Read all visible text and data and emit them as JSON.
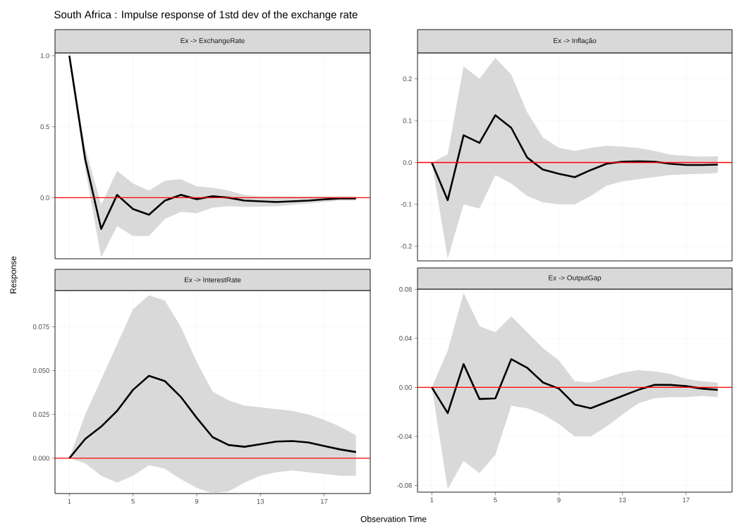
{
  "chart_data": [
    {
      "type": "line",
      "title": "Ex -> ExchangeRate",
      "annotations": [
        "South Africa : Impulse response of 1std dev of the exchange rate"
      ],
      "ylabel": "Response",
      "x": [
        1,
        2,
        3,
        4,
        5,
        6,
        7,
        8,
        9,
        10,
        11,
        12,
        13,
        14,
        15,
        16,
        17,
        18,
        19
      ],
      "series": [
        {
          "color": "#000000",
          "values": [
            1.0,
            0.27,
            -0.22,
            0.02,
            -0.08,
            -0.12,
            -0.02,
            0.02,
            -0.01,
            0.01,
            0.0,
            -0.02,
            -0.025,
            -0.03,
            -0.025,
            -0.02,
            -0.012,
            -0.005,
            -0.005
          ],
          "upper": [
            1.0,
            0.35,
            -0.05,
            0.19,
            0.1,
            0.05,
            0.12,
            0.13,
            0.08,
            0.07,
            0.05,
            0.02,
            0.01,
            0.01,
            0.01,
            0.01,
            0.01,
            0.01,
            0.01
          ],
          "lower": [
            0.95,
            0.2,
            -0.42,
            -0.2,
            -0.27,
            -0.27,
            -0.15,
            -0.1,
            -0.11,
            -0.07,
            -0.06,
            -0.065,
            -0.062,
            -0.06,
            -0.05,
            -0.04,
            -0.03,
            -0.02,
            -0.02
          ]
        }
      ],
      "xlim": [
        0.1,
        19.9
      ],
      "xticks": [
        1,
        5,
        9,
        13,
        17
      ],
      "ylim": [
        -0.43,
        1.02
      ],
      "yticks": [
        {
          "value": 0,
          "label": "0.0"
        },
        0.5,
        {
          "value": 1,
          "label": "1.0"
        }
      ],
      "ref_lines": [
        {
          "axis": "y",
          "value": 0,
          "color": "#ff0000"
        }
      ],
      "grid": true,
      "tick_labels": "y",
      "marker": "none",
      "line_style": "solid"
    },
    {
      "type": "line",
      "title": "Ex -> Inflação",
      "x": [
        1,
        2,
        3,
        4,
        5,
        6,
        7,
        8,
        9,
        10,
        11,
        12,
        13,
        14,
        15,
        16,
        17,
        18,
        19
      ],
      "series": [
        {
          "color": "#000000",
          "values": [
            0,
            -0.09,
            0.065,
            0.047,
            0.113,
            0.083,
            0.012,
            -0.017,
            -0.027,
            -0.035,
            -0.018,
            -0.003,
            0.002,
            0.003,
            0.002,
            -0.003,
            -0.006,
            -0.006,
            -0.005
          ],
          "upper": [
            0,
            0.02,
            0.23,
            0.2,
            0.25,
            0.21,
            0.12,
            0.06,
            0.035,
            0.028,
            0.035,
            0.04,
            0.038,
            0.035,
            0.028,
            0.019,
            0.016,
            0.014,
            0.015
          ],
          "lower": [
            0,
            -0.23,
            -0.1,
            -0.11,
            -0.03,
            -0.05,
            -0.08,
            -0.095,
            -0.1,
            -0.1,
            -0.08,
            -0.055,
            -0.045,
            -0.04,
            -0.035,
            -0.03,
            -0.028,
            -0.027,
            -0.025
          ]
        }
      ],
      "xlim": [
        0.1,
        19.9
      ],
      "xticks": [
        1,
        5,
        9,
        13,
        17
      ],
      "ylim": [
        -0.235,
        0.262
      ],
      "yticks": [
        -0.2,
        -0.1,
        {
          "value": 0,
          "label": "0.0"
        },
        0.1,
        0.2
      ],
      "ref_lines": [
        {
          "axis": "y",
          "value": 0,
          "color": "#ff0000"
        }
      ],
      "grid": true,
      "tick_labels": "y",
      "marker": "none",
      "line_style": "solid"
    },
    {
      "type": "line",
      "title": "Ex -> InterestRate",
      "xlabel": "Observation Time",
      "x": [
        1,
        2,
        3,
        4,
        5,
        6,
        7,
        8,
        9,
        10,
        11,
        12,
        13,
        14,
        15,
        16,
        17,
        18,
        19
      ],
      "series": [
        {
          "color": "#000000",
          "values": [
            0,
            0.011,
            0.018,
            0.027,
            0.039,
            0.047,
            0.044,
            0.035,
            0.023,
            0.012,
            0.0075,
            0.0065,
            0.008,
            0.0095,
            0.0098,
            0.009,
            0.007,
            0.005,
            0.0035
          ],
          "upper": [
            0,
            0.025,
            0.045,
            0.065,
            0.085,
            0.093,
            0.09,
            0.075,
            0.055,
            0.038,
            0.033,
            0.03,
            0.029,
            0.028,
            0.027,
            0.025,
            0.022,
            0.018,
            0.013
          ],
          "lower": [
            0,
            -0.003,
            -0.01,
            -0.014,
            -0.01,
            -0.004,
            -0.006,
            -0.012,
            -0.017,
            -0.02,
            -0.019,
            -0.014,
            -0.01,
            -0.008,
            -0.007,
            -0.008,
            -0.009,
            -0.01,
            -0.01
          ]
        }
      ],
      "xlim": [
        0.1,
        19.9
      ],
      "xticks": [
        1,
        5,
        9,
        13,
        17
      ],
      "ylim": [
        -0.0202,
        0.0957
      ],
      "yticks": [
        {
          "value": 0,
          "label": "0.000"
        },
        0.025,
        {
          "value": 0.05,
          "label": "0.050"
        },
        0.075
      ],
      "ref_lines": [
        {
          "axis": "y",
          "value": 0,
          "color": "#ff0000"
        }
      ],
      "grid": true,
      "marker": "none",
      "line_style": "solid"
    },
    {
      "type": "line",
      "title": "Ex -> OutputGap",
      "x": [
        1,
        2,
        3,
        4,
        5,
        6,
        7,
        8,
        9,
        10,
        11,
        12,
        13,
        14,
        15,
        16,
        17,
        18,
        19
      ],
      "series": [
        {
          "color": "#000000",
          "values": [
            0,
            -0.021,
            0.019,
            -0.0095,
            -0.009,
            0.023,
            0.016,
            0.004,
            -0.001,
            -0.014,
            -0.017,
            -0.012,
            -0.007,
            -0.002,
            0.002,
            0.002,
            0.001,
            -0.001,
            -0.002
          ],
          "upper": [
            0,
            0.03,
            0.077,
            0.05,
            0.045,
            0.058,
            0.045,
            0.032,
            0.022,
            0.005,
            0.004,
            0.008,
            0.012,
            0.014,
            0.013,
            0.011,
            0.007,
            0.005,
            0.004
          ],
          "lower": [
            0,
            -0.083,
            -0.06,
            -0.07,
            -0.055,
            -0.015,
            -0.017,
            -0.022,
            -0.03,
            -0.04,
            -0.04,
            -0.032,
            -0.022,
            -0.013,
            -0.009,
            -0.008,
            -0.008,
            -0.007,
            -0.008
          ]
        }
      ],
      "xlim": [
        0.1,
        19.9
      ],
      "xticks": [
        1,
        5,
        9,
        13,
        17
      ],
      "ylim": [
        -0.0855,
        0.0802
      ],
      "yticks": [
        {
          "value": -0.08,
          "label": "-0.08"
        },
        {
          "value": -0.04,
          "label": "-0.04"
        },
        {
          "value": 0,
          "label": "0.00"
        },
        {
          "value": 0.04,
          "label": "0.04"
        },
        {
          "value": 0.08,
          "label": "0.08"
        }
      ],
      "ref_lines": [
        {
          "axis": "y",
          "value": 0,
          "color": "#ff0000"
        }
      ],
      "grid": true,
      "marker": "none",
      "line_style": "solid"
    }
  ]
}
